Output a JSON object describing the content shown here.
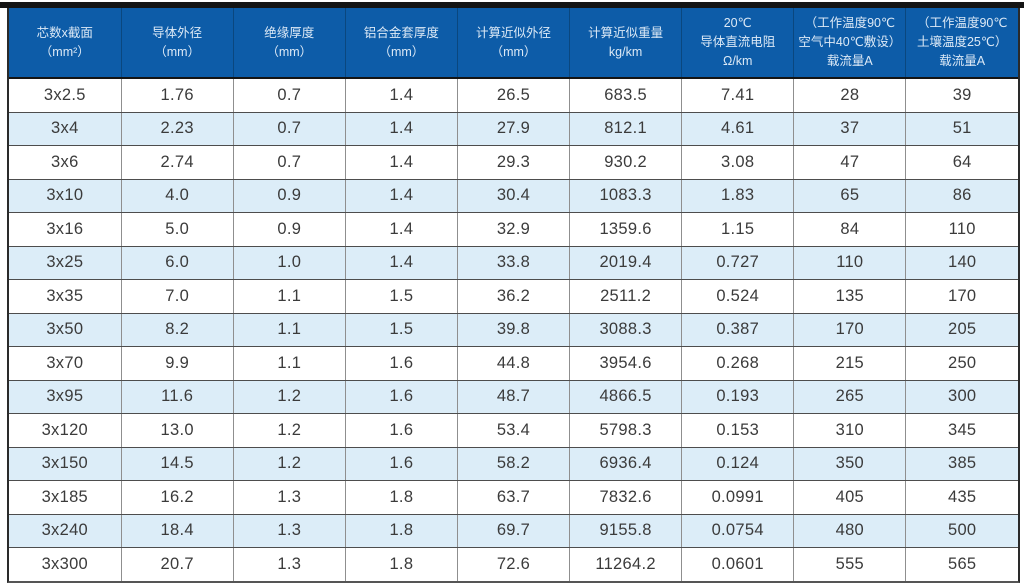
{
  "table": {
    "header_bg": "#0d5ca8",
    "header_text_color": "#dce9f6",
    "alt_row_bg": "#dcedf8",
    "border_dark": "#141414",
    "columns": [
      {
        "lines": [
          "芯数x截面",
          "（mm²）"
        ]
      },
      {
        "lines": [
          "导体外径",
          "（mm）"
        ]
      },
      {
        "lines": [
          "绝缘厚度",
          "（mm）"
        ]
      },
      {
        "lines": [
          "铝合金套厚度",
          "（mm）"
        ]
      },
      {
        "lines": [
          "计算近似外径",
          "（mm）"
        ]
      },
      {
        "lines": [
          "计算近似重量",
          "kg/km"
        ]
      },
      {
        "lines": [
          "20℃",
          "导体直流电阻",
          "Ω/km"
        ]
      },
      {
        "lines": [
          "（工作温度90℃",
          "空气中40℃敷设）",
          "载流量A"
        ]
      },
      {
        "lines": [
          "（工作温度90℃",
          "土壤温度25℃）",
          "载流量A"
        ]
      }
    ],
    "rows": [
      [
        "3x2.5",
        "1.76",
        "0.7",
        "1.4",
        "26.5",
        "683.5",
        "7.41",
        "28",
        "39"
      ],
      [
        "3x4",
        "2.23",
        "0.7",
        "1.4",
        "27.9",
        "812.1",
        "4.61",
        "37",
        "51"
      ],
      [
        "3x6",
        "2.74",
        "0.7",
        "1.4",
        "29.3",
        "930.2",
        "3.08",
        "47",
        "64"
      ],
      [
        "3x10",
        "4.0",
        "0.9",
        "1.4",
        "30.4",
        "1083.3",
        "1.83",
        "65",
        "86"
      ],
      [
        "3x16",
        "5.0",
        "0.9",
        "1.4",
        "32.9",
        "1359.6",
        "1.15",
        "84",
        "110"
      ],
      [
        "3x25",
        "6.0",
        "1.0",
        "1.4",
        "33.8",
        "2019.4",
        "0.727",
        "110",
        "140"
      ],
      [
        "3x35",
        "7.0",
        "1.1",
        "1.5",
        "36.2",
        "2511.2",
        "0.524",
        "135",
        "170"
      ],
      [
        "3x50",
        "8.2",
        "1.1",
        "1.5",
        "39.8",
        "3088.3",
        "0.387",
        "170",
        "205"
      ],
      [
        "3x70",
        "9.9",
        "1.1",
        "1.6",
        "44.8",
        "3954.6",
        "0.268",
        "215",
        "250"
      ],
      [
        "3x95",
        "11.6",
        "1.2",
        "1.6",
        "48.7",
        "4866.5",
        "0.193",
        "265",
        "300"
      ],
      [
        "3x120",
        "13.0",
        "1.2",
        "1.6",
        "53.4",
        "5798.3",
        "0.153",
        "310",
        "345"
      ],
      [
        "3x150",
        "14.5",
        "1.2",
        "1.6",
        "58.2",
        "6936.4",
        "0.124",
        "350",
        "385"
      ],
      [
        "3x185",
        "16.2",
        "1.3",
        "1.8",
        "63.7",
        "7832.6",
        "0.0991",
        "405",
        "435"
      ],
      [
        "3x240",
        "18.4",
        "1.3",
        "1.8",
        "69.7",
        "9155.8",
        "0.0754",
        "480",
        "500"
      ],
      [
        "3x300",
        "20.7",
        "1.3",
        "1.8",
        "72.6",
        "11264.2",
        "0.0601",
        "555",
        "565"
      ]
    ]
  }
}
